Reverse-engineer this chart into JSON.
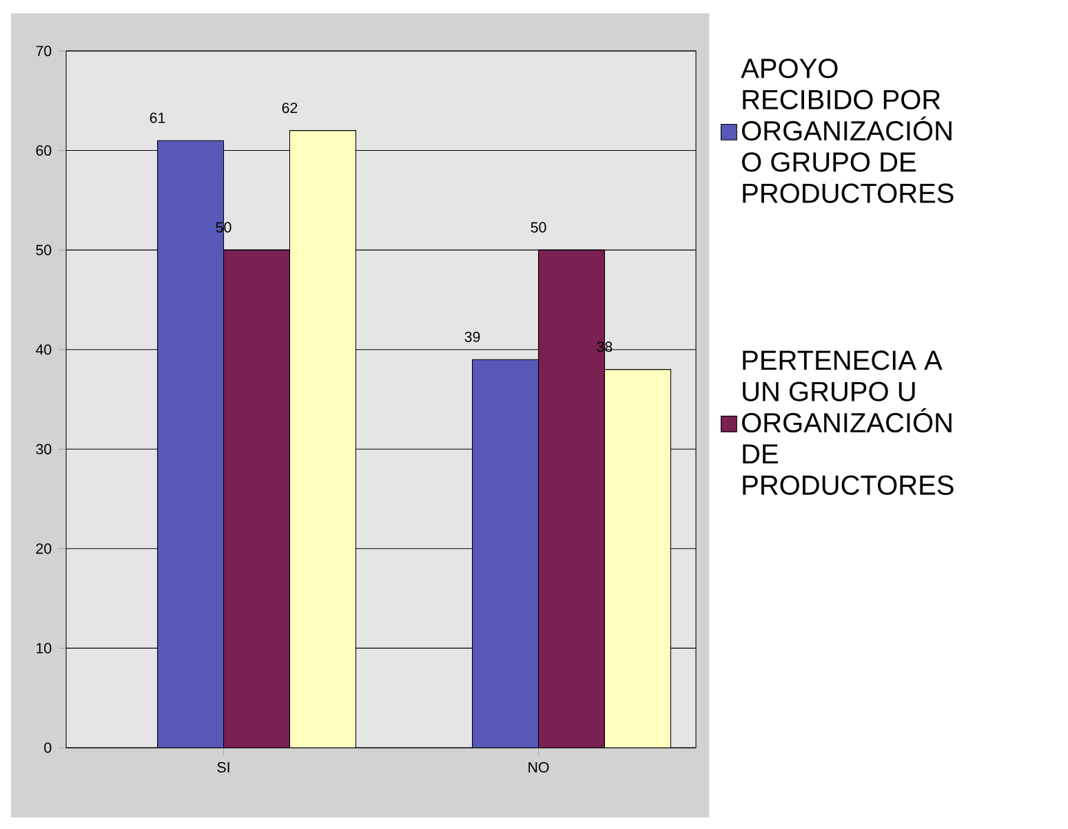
{
  "chart_data": {
    "type": "bar",
    "categories": [
      "SI",
      "NO"
    ],
    "series": [
      {
        "name": "APOYO RECIBIDO POR ORGANIZACIÓN O GRUPO DE PRODUCTORES",
        "color": "#5858b8",
        "values": [
          61,
          39
        ]
      },
      {
        "name": "PERTENECIA A UN GRUPO U ORGANIZACIÓN DE PRODUCTORES",
        "color": "#7a2052",
        "values": [
          50,
          50
        ]
      },
      {
        "color": "#ffffc0",
        "values": [
          62,
          38
        ]
      }
    ],
    "ylim": [
      0,
      70
    ],
    "yticks": [
      0,
      10,
      20,
      30,
      40,
      50,
      60,
      70
    ],
    "grid": "y",
    "legend": "right",
    "data_labels": true
  }
}
